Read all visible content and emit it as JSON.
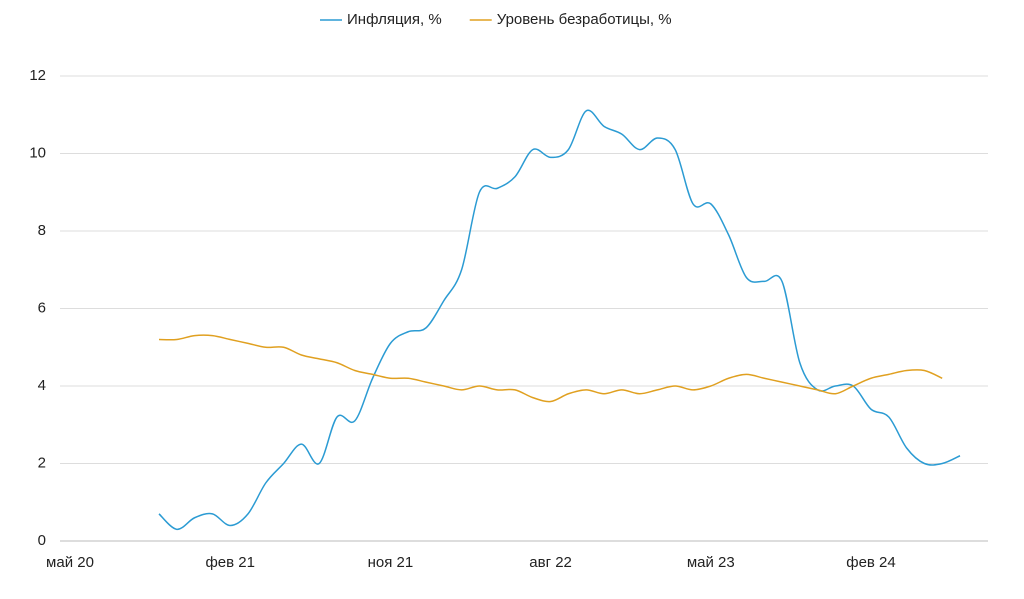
{
  "chart_data": {
    "type": "line",
    "categories": [
      "май 20",
      null,
      null,
      null,
      null,
      null,
      null,
      null,
      null,
      "фев 21",
      null,
      null,
      null,
      null,
      null,
      null,
      null,
      null,
      "ноя 21",
      null,
      null,
      null,
      null,
      null,
      null,
      null,
      null,
      "авг 22",
      null,
      null,
      null,
      null,
      null,
      null,
      null,
      null,
      "май 23",
      null,
      null,
      null,
      null,
      null,
      null,
      null,
      null,
      "фев 24",
      null,
      null,
      null,
      null,
      null,
      null
    ],
    "series": [
      {
        "name": "Инфляция, %",
        "color": "#2b9bd3",
        "values": [
          null,
          null,
          null,
          null,
          null,
          0.7,
          0.3,
          0.6,
          0.7,
          0.4,
          0.7,
          1.5,
          2.0,
          2.5,
          2.0,
          3.2,
          3.1,
          4.2,
          5.1,
          5.4,
          5.5,
          6.2,
          7.0,
          9.0,
          9.1,
          9.4,
          10.1,
          9.9,
          10.1,
          11.1,
          10.7,
          10.5,
          10.1,
          10.4,
          10.1,
          8.7,
          8.7,
          7.9,
          6.8,
          6.7,
          6.7,
          4.6,
          3.9,
          4.0,
          4.0,
          3.4,
          3.2,
          2.4,
          2.0,
          2.0,
          2.2,
          null
        ]
      },
      {
        "name": "Уровень безработицы, %",
        "color": "#e0a020",
        "values": [
          null,
          null,
          null,
          null,
          null,
          5.2,
          5.2,
          5.3,
          5.3,
          5.2,
          5.1,
          5.0,
          5.0,
          4.8,
          4.7,
          4.6,
          4.4,
          4.3,
          4.2,
          4.2,
          4.1,
          4.0,
          3.9,
          4.0,
          3.9,
          3.9,
          3.7,
          3.6,
          3.8,
          3.9,
          3.8,
          3.9,
          3.8,
          3.9,
          4.0,
          3.9,
          4.0,
          4.2,
          4.3,
          4.2,
          4.1,
          4.0,
          3.9,
          3.8,
          4.0,
          4.2,
          4.3,
          4.4,
          4.4,
          4.2,
          null,
          null
        ]
      }
    ],
    "ylim": [
      0,
      12
    ],
    "yticks": [
      0,
      2,
      4,
      6,
      8,
      10,
      12
    ],
    "grid": true,
    "legend": "top"
  }
}
